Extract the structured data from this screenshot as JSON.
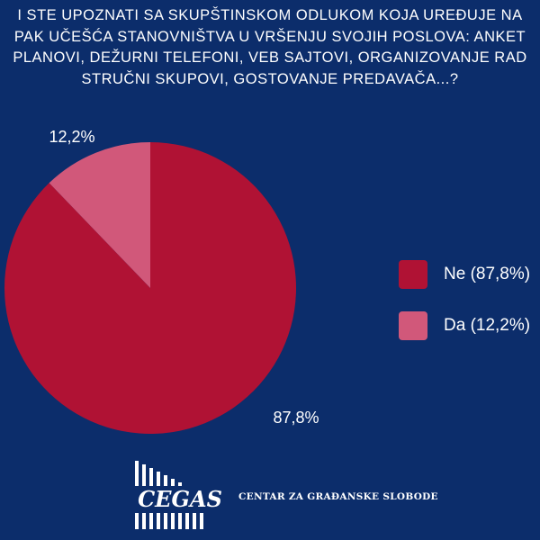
{
  "title_lines": [
    "i ste upoznati sa skupštinskom odlukom koja uređuje na",
    "pak učešća stanovništva u vršenju svojih poslova: anket",
    "planovi, dežurni telefoni, veb sajtovi, organizovanje rad",
    "stručni skupovi, gostovanje predavača...?"
  ],
  "chart_data": {
    "type": "pie",
    "slices": [
      {
        "label": "Ne",
        "value": 87.8,
        "color": "#b01234"
      },
      {
        "label": "Da",
        "value": 12.2,
        "color": "#d1587a"
      }
    ],
    "data_labels": [
      "87,8%",
      "12,2%"
    ],
    "legend": [
      "Ne (87,8%)",
      "Da (12,2%)"
    ],
    "legend_position": "right"
  },
  "footer": {
    "logo_text": "CEGAS",
    "org_name": "CENTAR ZA GRAĐANSKE SLOBODE"
  }
}
